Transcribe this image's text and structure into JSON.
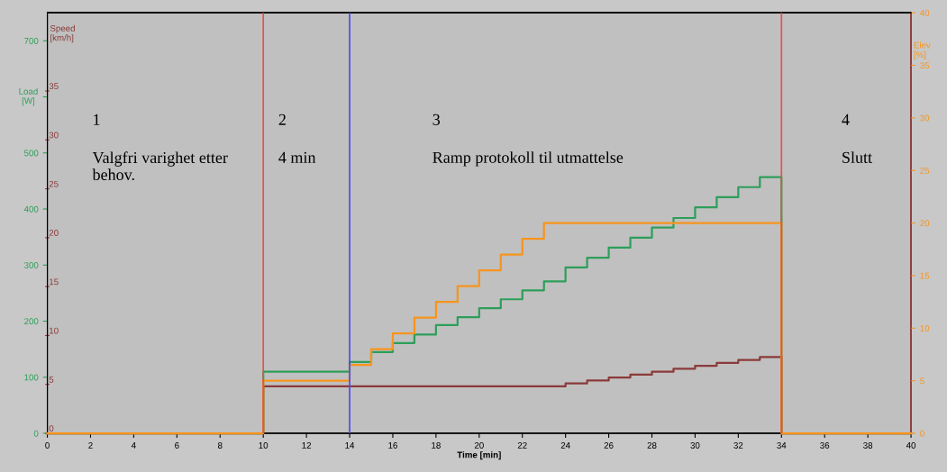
{
  "chart_data": {
    "type": "step",
    "xlabel": "Time [min]",
    "ylabel": "Load\n[W]",
    "y2label": "Speed\n[km/h]",
    "y3label": "Elev\n[%]",
    "x": [
      0,
      10,
      14,
      15,
      16,
      17,
      18,
      19,
      20,
      21,
      22,
      23,
      24,
      25,
      26,
      27,
      28,
      29,
      30,
      31,
      32,
      33,
      34,
      40
    ],
    "series": [
      {
        "color": "#8b3a3a",
        "axis": "y2",
        "values": [
          0,
          4.8,
          4.8,
          4.8,
          4.8,
          4.8,
          4.8,
          4.8,
          4.8,
          4.8,
          4.8,
          4.8,
          5.1,
          5.4,
          5.7,
          6.0,
          6.3,
          6.6,
          6.9,
          7.2,
          7.5,
          7.8,
          0,
          0
        ]
      },
      {
        "color": "#2e9e5a",
        "axis": "y",
        "values": [
          0,
          110,
          127,
          145,
          161,
          176,
          193,
          207,
          223,
          239,
          255,
          271,
          296,
          313,
          331,
          349,
          367,
          384,
          403,
          421,
          439,
          457,
          0,
          0
        ]
      },
      {
        "color": "#f7941d",
        "axis": "y3",
        "values": [
          0,
          5,
          6.5,
          8,
          9.5,
          11,
          12.5,
          14,
          15.5,
          17,
          18.5,
          20,
          20,
          20,
          20,
          20,
          20,
          20,
          20,
          20,
          20,
          20,
          0,
          0
        ]
      }
    ],
    "xlim": [
      0,
      40
    ],
    "xticks": [
      0,
      2,
      4,
      6,
      8,
      10,
      12,
      14,
      16,
      18,
      20,
      22,
      24,
      26,
      28,
      30,
      32,
      34,
      36,
      38,
      40
    ],
    "ylim": [
      0,
      750
    ],
    "yticks": [
      0,
      100,
      200,
      300,
      400,
      500,
      {
        "value": 600,
        "label": null
      },
      700
    ],
    "y2lim": [
      0,
      43
    ],
    "y2ticks": [
      0,
      5,
      10,
      15,
      20,
      25,
      30,
      35
    ],
    "y3lim": [
      0,
      40
    ],
    "y3ticks": [
      0,
      5,
      10,
      15,
      20,
      25,
      30,
      35,
      40
    ],
    "ref_lines": [
      {
        "axis": "x",
        "value": 10,
        "color": "#e8504a"
      },
      {
        "axis": "x",
        "value": 14,
        "color": "#4a4af0"
      },
      {
        "axis": "x",
        "value": 34,
        "color": "#e8504a"
      }
    ],
    "annotations": [
      "1",
      "Valgfri varighet etter\nbehov.",
      "2",
      "4 min",
      "3",
      "Ramp protokoll til utmattelse",
      "4",
      "Slutt"
    ]
  }
}
